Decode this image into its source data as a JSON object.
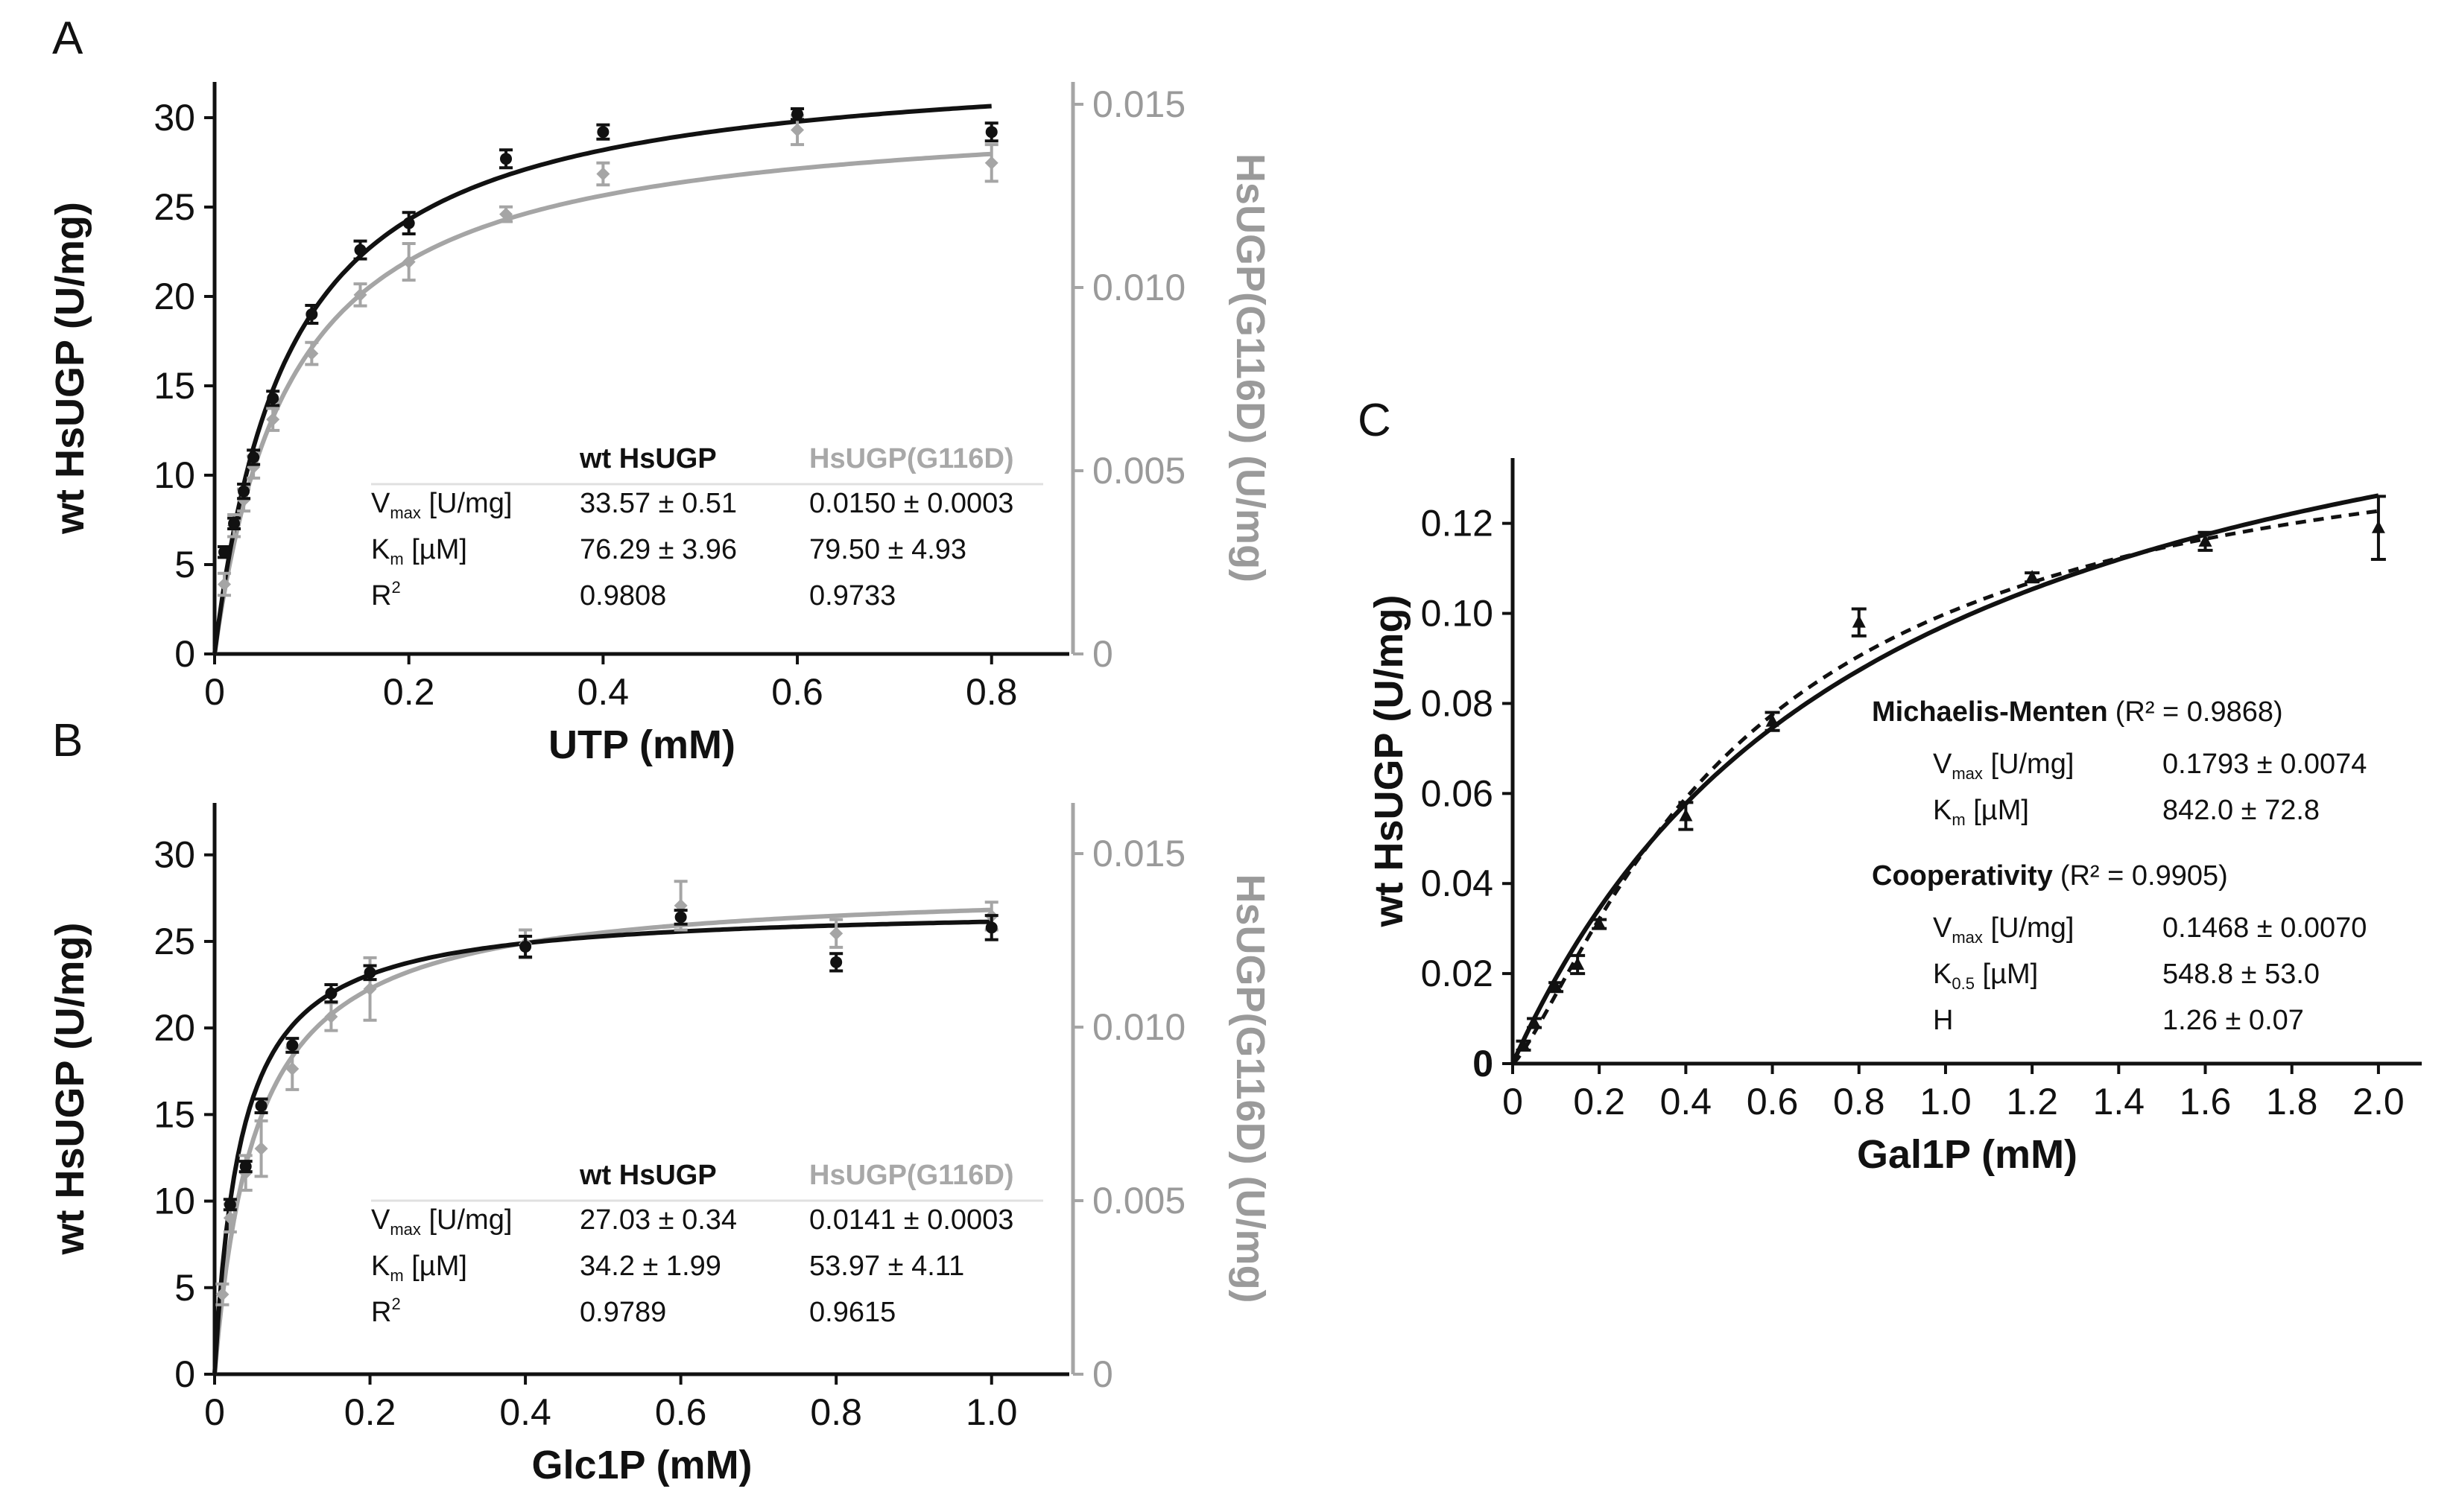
{
  "colors": {
    "wt": "#111111",
    "mutant": "#a5a5a5"
  },
  "chart_data": [
    {
      "panel": "A",
      "type": "scatter",
      "xlabel": "UTP (mM)",
      "ylabel": "wt HsUGP (U/mg)",
      "ylabel_right": "HsUGP(G116D) (U/mg)",
      "xlim": [
        0,
        0.88
      ],
      "ylim": [
        0,
        32
      ],
      "ylim_right": [
        0,
        0.01561
      ],
      "xticks": [
        "0",
        "0.2",
        "0.4",
        "0.6",
        "0.8"
      ],
      "yticks": [
        "0",
        "5",
        "10",
        "15",
        "20",
        "25",
        "30"
      ],
      "yticks_right": [
        "0",
        "0.005",
        "0.010",
        "0.015"
      ],
      "series": [
        {
          "name": "wt HsUGP",
          "axis": "left",
          "x": [
            0.01,
            0.02,
            0.03,
            0.04,
            0.06,
            0.1,
            0.15,
            0.2,
            0.3,
            0.4,
            0.6,
            0.8
          ],
          "y": [
            5.7,
            7.3,
            9.1,
            11.0,
            14.3,
            19.0,
            22.6,
            24.1,
            27.7,
            29.2,
            30.2,
            29.2
          ],
          "err": [
            0.3,
            0.3,
            0.4,
            0.4,
            0.4,
            0.5,
            0.5,
            0.6,
            0.5,
            0.4,
            0.3,
            0.5
          ],
          "fit": {
            "model": "Michaelis-Menten",
            "vmax": 33.57,
            "km_mM": 0.07629
          }
        },
        {
          "name": "HsUGP(G116D)",
          "axis": "right",
          "x": [
            0.01,
            0.02,
            0.03,
            0.04,
            0.06,
            0.1,
            0.15,
            0.2,
            0.3,
            0.4,
            0.6,
            0.8
          ],
          "y": [
            0.0019,
            0.0035,
            0.0042,
            0.0051,
            0.0064,
            0.0082,
            0.0098,
            0.0107,
            0.012,
            0.0131,
            0.0143,
            0.0134
          ],
          "err": [
            0.0003,
            0.0003,
            0.0003,
            0.0003,
            0.0003,
            0.0003,
            0.0003,
            0.0005,
            0.0002,
            0.0003,
            0.0004,
            0.0005
          ],
          "fit": {
            "model": "Michaelis-Menten",
            "vmax": 0.015,
            "km_mM": 0.0795
          }
        }
      ],
      "table": {
        "headers": [
          "wt HsUGP",
          "HsUGP(G116D)"
        ],
        "rows": [
          {
            "label": "V",
            "sub": "max",
            "unit": " [U/mg]",
            "wt": "33.57 ± 0.51",
            "mut": "0.0150 ± 0.0003"
          },
          {
            "label": "K",
            "sub": "m",
            "unit": " [µM]",
            "wt": "76.29 ± 3.96",
            "mut": "79.50 ± 4.93"
          },
          {
            "label": "R",
            "sup": "2",
            "unit": "",
            "wt": "0.9808",
            "mut": "0.9733"
          }
        ]
      }
    },
    {
      "panel": "B",
      "type": "scatter",
      "xlabel": "Glc1P (mM)",
      "ylabel": "wt HsUGP (U/mg)",
      "ylabel_right": "HsUGP(G116D) (U/mg)",
      "xlim": [
        0,
        1.1
      ],
      "ylim": [
        0,
        33
      ],
      "ylim_right": [
        0,
        0.01646
      ],
      "xticks": [
        "0",
        "0.2",
        "0.4",
        "0.6",
        "0.8",
        "1.0"
      ],
      "yticks": [
        "0",
        "5",
        "10",
        "15",
        "20",
        "25",
        "30"
      ],
      "yticks_right": [
        "0",
        "0.005",
        "0.010",
        "0.015"
      ],
      "series": [
        {
          "name": "wt HsUGP",
          "axis": "left",
          "x": [
            0.02,
            0.04,
            0.06,
            0.1,
            0.15,
            0.2,
            0.4,
            0.6,
            0.8,
            1.0
          ],
          "y": [
            9.8,
            12.0,
            15.5,
            19.0,
            22.0,
            23.2,
            24.7,
            26.4,
            23.8,
            25.8
          ],
          "err": [
            0.3,
            0.3,
            0.4,
            0.4,
            0.5,
            0.4,
            0.6,
            0.4,
            0.5,
            0.7
          ],
          "fit": {
            "model": "Michaelis-Menten",
            "vmax": 27.03,
            "km_mM": 0.0342
          }
        },
        {
          "name": "HsUGP(G116D)",
          "axis": "right",
          "x": [
            0.01,
            0.02,
            0.04,
            0.06,
            0.1,
            0.15,
            0.2,
            0.4,
            0.6,
            0.8,
            1.0
          ],
          "y": [
            0.0023,
            0.0045,
            0.0058,
            0.0065,
            0.0088,
            0.0103,
            0.0111,
            0.0124,
            0.0135,
            0.0127,
            0.0132
          ],
          "err": [
            0.0003,
            0.0004,
            0.0005,
            0.0008,
            0.0006,
            0.0004,
            0.0009,
            0.0004,
            0.0007,
            0.0004,
            0.0004
          ],
          "fit": {
            "model": "Michaelis-Menten",
            "vmax": 0.0141,
            "km_mM": 0.05397
          }
        }
      ],
      "table": {
        "headers": [
          "wt HsUGP",
          "HsUGP(G116D)"
        ],
        "rows": [
          {
            "label": "V",
            "sub": "max",
            "unit": " [U/mg]",
            "wt": "27.03 ± 0.34",
            "mut": "0.0141 ± 0.0003"
          },
          {
            "label": "K",
            "sub": "m",
            "unit": " [µM]",
            "wt": "34.2 ± 1.99",
            "mut": "53.97 ± 4.11"
          },
          {
            "label": "R",
            "sup": "2",
            "unit": "",
            "wt": "0.9789",
            "mut": "0.9615"
          }
        ]
      }
    },
    {
      "panel": "C",
      "type": "scatter",
      "xlabel": "Gal1P (mM)",
      "ylabel": "wt HsUGP (U/mg)",
      "xlim": [
        0,
        2.1
      ],
      "ylim": [
        0,
        0.1345
      ],
      "xticks": [
        "0",
        "0.2",
        "0.4",
        "0.6",
        "0.8",
        "1.0",
        "1.2",
        "1.4",
        "1.6",
        "1.8",
        "2.0"
      ],
      "yticks": [
        "0",
        "0.02",
        "0.04",
        "0.06",
        "0.08",
        "0.10",
        "0.12"
      ],
      "series": [
        {
          "name": "wt HsUGP",
          "x": [
            0.025,
            0.05,
            0.1,
            0.15,
            0.2,
            0.4,
            0.6,
            0.8,
            1.2,
            1.6,
            2.0
          ],
          "y": [
            0.004,
            0.009,
            0.017,
            0.022,
            0.031,
            0.055,
            0.076,
            0.098,
            0.108,
            0.116,
            0.119
          ],
          "err": [
            0.001,
            0.001,
            0.001,
            0.002,
            0.001,
            0.003,
            0.002,
            0.003,
            0.001,
            0.002,
            0.007
          ]
        }
      ],
      "fits": [
        {
          "name": "Michaelis-Menten",
          "style": "solid",
          "vmax": 0.1793,
          "km_mM": 0.842
        },
        {
          "name": "Cooperativity",
          "style": "dashed",
          "vmax": 0.1468,
          "k05_mM": 0.5488,
          "h": 1.26
        }
      ],
      "legend_blocks": [
        {
          "title": "Michaelis-Menten",
          "r2": "(R² = 0.9868)",
          "rows": [
            {
              "label": "V",
              "sub": "max",
              "unit": " [U/mg]",
              "value": "0.1793 ± 0.0074"
            },
            {
              "label": "K",
              "sub": "m",
              "unit": " [µM]",
              "value": "842.0 ± 72.8"
            }
          ]
        },
        {
          "title": "Cooperativity",
          "r2": "(R² = 0.9905)",
          "rows": [
            {
              "label": "V",
              "sub": "max",
              "unit": " [U/mg]",
              "value": "0.1468 ± 0.0070"
            },
            {
              "label": "K",
              "sub": "0.5",
              "unit": " [µM]",
              "value": "548.8 ± 53.0"
            },
            {
              "label": "H",
              "sub": "",
              "unit": "",
              "value": "1.26 ± 0.07"
            }
          ]
        }
      ]
    }
  ]
}
